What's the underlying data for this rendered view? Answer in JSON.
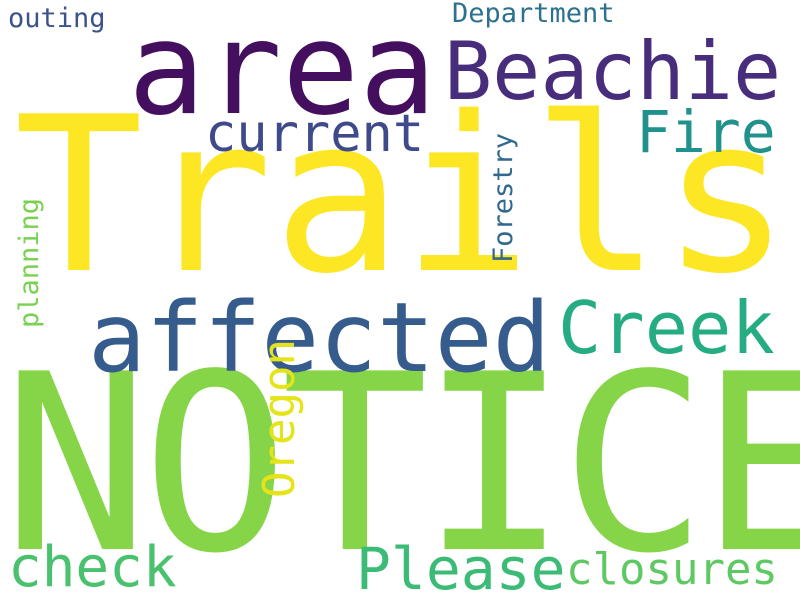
{
  "words": {
    "trails": {
      "text": "Trails",
      "color": "#fde725"
    },
    "notice": {
      "text": "NOTICE",
      "color": "#86d549"
    },
    "area": {
      "text": "area",
      "color": "#440f5e"
    },
    "beachie": {
      "text": "Beachie",
      "color": "#472d7b"
    },
    "affected": {
      "text": "affected",
      "color": "#365c8d"
    },
    "creek": {
      "text": "Creek",
      "color": "#25ac82"
    },
    "current": {
      "text": "current",
      "color": "#3e4a89"
    },
    "fire": {
      "text": "Fire",
      "color": "#21918c"
    },
    "please": {
      "text": "Please",
      "color": "#3bbb75"
    },
    "check": {
      "text": "check",
      "color": "#4ac16d"
    },
    "closures": {
      "text": "closures",
      "color": "#5ec962"
    },
    "department": {
      "text": "Department",
      "color": "#2c728e"
    },
    "outing": {
      "text": "outing",
      "color": "#3b528b"
    },
    "oregon": {
      "text": "Oregon",
      "color": "#e4e419"
    },
    "forestry": {
      "text": "Forestry",
      "color": "#31688e"
    },
    "planning": {
      "text": "planning",
      "color": "#7ad151"
    }
  }
}
